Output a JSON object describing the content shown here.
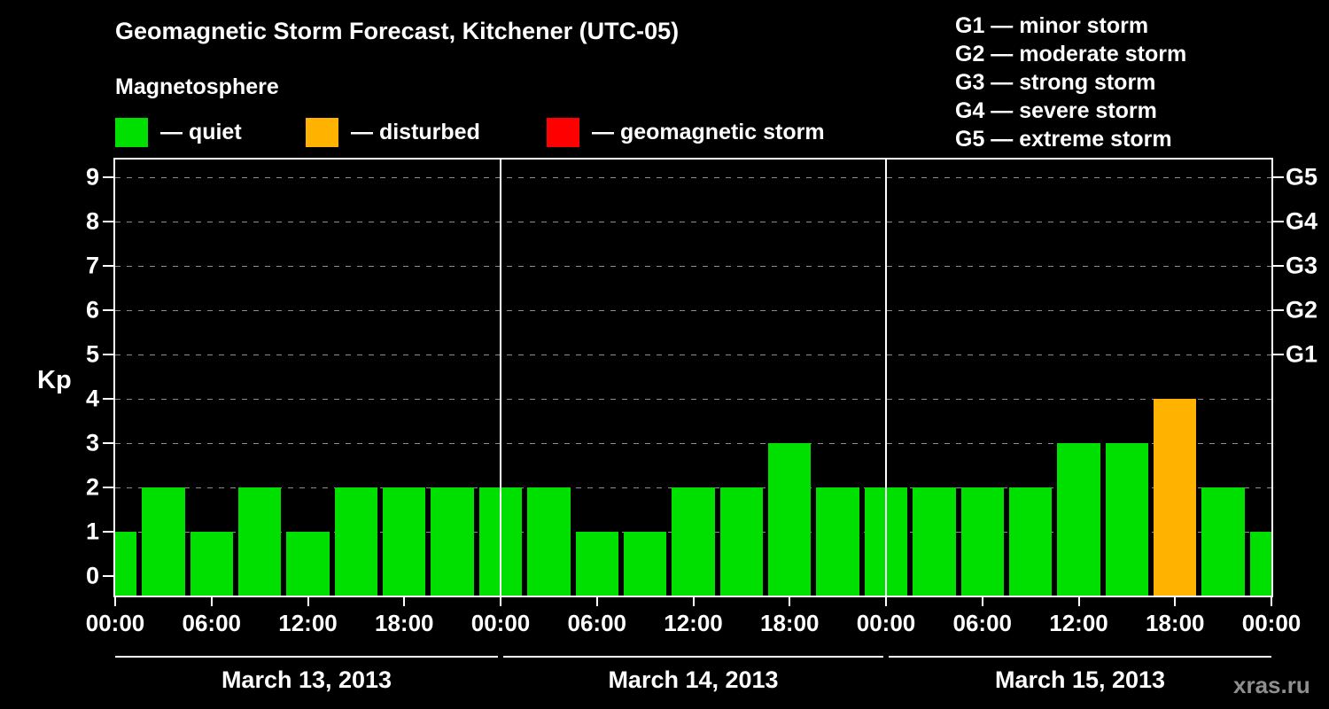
{
  "title": "Geomagnetic Storm Forecast, Kitchener (UTC-05)",
  "subtitle": "Magnetosphere",
  "watermark": "xras.ru",
  "legend": {
    "items": [
      {
        "status": "quiet",
        "label": "— quiet",
        "color": "#00e000"
      },
      {
        "status": "disturbed",
        "label": "— disturbed",
        "color": "#ffb200"
      },
      {
        "status": "storm",
        "label": "— geomagnetic storm",
        "color": "#ff0000"
      }
    ]
  },
  "g_legend": [
    "G1 — minor storm",
    "G2 — moderate storm",
    "G3 — strong storm",
    "G4 — severe storm",
    "G5 — extreme storm"
  ],
  "chart_data": {
    "type": "bar",
    "title": "Geomagnetic Storm Forecast, Kitchener (UTC-05)",
    "xlabel": "",
    "ylabel": "Kp",
    "ylim": [
      0,
      9
    ],
    "grid": "dashed horizontal",
    "y_ticks": [
      0,
      1,
      2,
      3,
      4,
      5,
      6,
      7,
      8,
      9
    ],
    "right_axis_ticks": [
      {
        "value": 5,
        "label": "G1"
      },
      {
        "value": 6,
        "label": "G2"
      },
      {
        "value": 7,
        "label": "G3"
      },
      {
        "value": 8,
        "label": "G4"
      },
      {
        "value": 9,
        "label": "G5"
      }
    ],
    "x_tick_labels": [
      "00:00",
      "06:00",
      "12:00",
      "18:00",
      "00:00",
      "06:00",
      "12:00",
      "18:00",
      "00:00",
      "06:00",
      "12:00",
      "18:00",
      "00:00"
    ],
    "days": [
      {
        "label": "March 13, 2013",
        "start_hour": 0,
        "end_hour": 24
      },
      {
        "label": "March 14, 2013",
        "start_hour": 24,
        "end_hour": 48
      },
      {
        "label": "March 15, 2013",
        "start_hour": 48,
        "end_hour": 72
      }
    ],
    "bar_width_hours": 3,
    "colors": {
      "quiet": "#00e000",
      "disturbed": "#ffb200",
      "storm": "#ff0000"
    },
    "points": [
      {
        "hour": 0,
        "time": "Mar 13 00:00",
        "kp": 1,
        "status": "quiet"
      },
      {
        "hour": 3,
        "time": "Mar 13 03:00",
        "kp": 2,
        "status": "quiet"
      },
      {
        "hour": 6,
        "time": "Mar 13 06:00",
        "kp": 1,
        "status": "quiet"
      },
      {
        "hour": 9,
        "time": "Mar 13 09:00",
        "kp": 2,
        "status": "quiet"
      },
      {
        "hour": 12,
        "time": "Mar 13 12:00",
        "kp": 1,
        "status": "quiet"
      },
      {
        "hour": 15,
        "time": "Mar 13 15:00",
        "kp": 2,
        "status": "quiet"
      },
      {
        "hour": 18,
        "time": "Mar 13 18:00",
        "kp": 2,
        "status": "quiet"
      },
      {
        "hour": 21,
        "time": "Mar 13 21:00",
        "kp": 2,
        "status": "quiet"
      },
      {
        "hour": 24,
        "time": "Mar 14 00:00",
        "kp": 2,
        "status": "quiet"
      },
      {
        "hour": 27,
        "time": "Mar 14 03:00",
        "kp": 2,
        "status": "quiet"
      },
      {
        "hour": 30,
        "time": "Mar 14 06:00",
        "kp": 1,
        "status": "quiet"
      },
      {
        "hour": 33,
        "time": "Mar 14 09:00",
        "kp": 1,
        "status": "quiet"
      },
      {
        "hour": 36,
        "time": "Mar 14 12:00",
        "kp": 2,
        "status": "quiet"
      },
      {
        "hour": 39,
        "time": "Mar 14 15:00",
        "kp": 2,
        "status": "quiet"
      },
      {
        "hour": 42,
        "time": "Mar 14 18:00",
        "kp": 3,
        "status": "quiet"
      },
      {
        "hour": 45,
        "time": "Mar 14 21:00",
        "kp": 2,
        "status": "quiet"
      },
      {
        "hour": 48,
        "time": "Mar 15 00:00",
        "kp": 2,
        "status": "quiet"
      },
      {
        "hour": 51,
        "time": "Mar 15 03:00",
        "kp": 2,
        "status": "quiet"
      },
      {
        "hour": 54,
        "time": "Mar 15 06:00",
        "kp": 2,
        "status": "quiet"
      },
      {
        "hour": 57,
        "time": "Mar 15 09:00",
        "kp": 2,
        "status": "quiet"
      },
      {
        "hour": 60,
        "time": "Mar 15 12:00",
        "kp": 3,
        "status": "quiet"
      },
      {
        "hour": 63,
        "time": "Mar 15 15:00",
        "kp": 3,
        "status": "quiet"
      },
      {
        "hour": 66,
        "time": "Mar 15 18:00",
        "kp": 4,
        "status": "disturbed"
      },
      {
        "hour": 69,
        "time": "Mar 15 21:00",
        "kp": 2,
        "status": "quiet"
      },
      {
        "hour": 72,
        "time": "Mar 16 00:00",
        "kp": 1,
        "status": "quiet"
      }
    ]
  }
}
